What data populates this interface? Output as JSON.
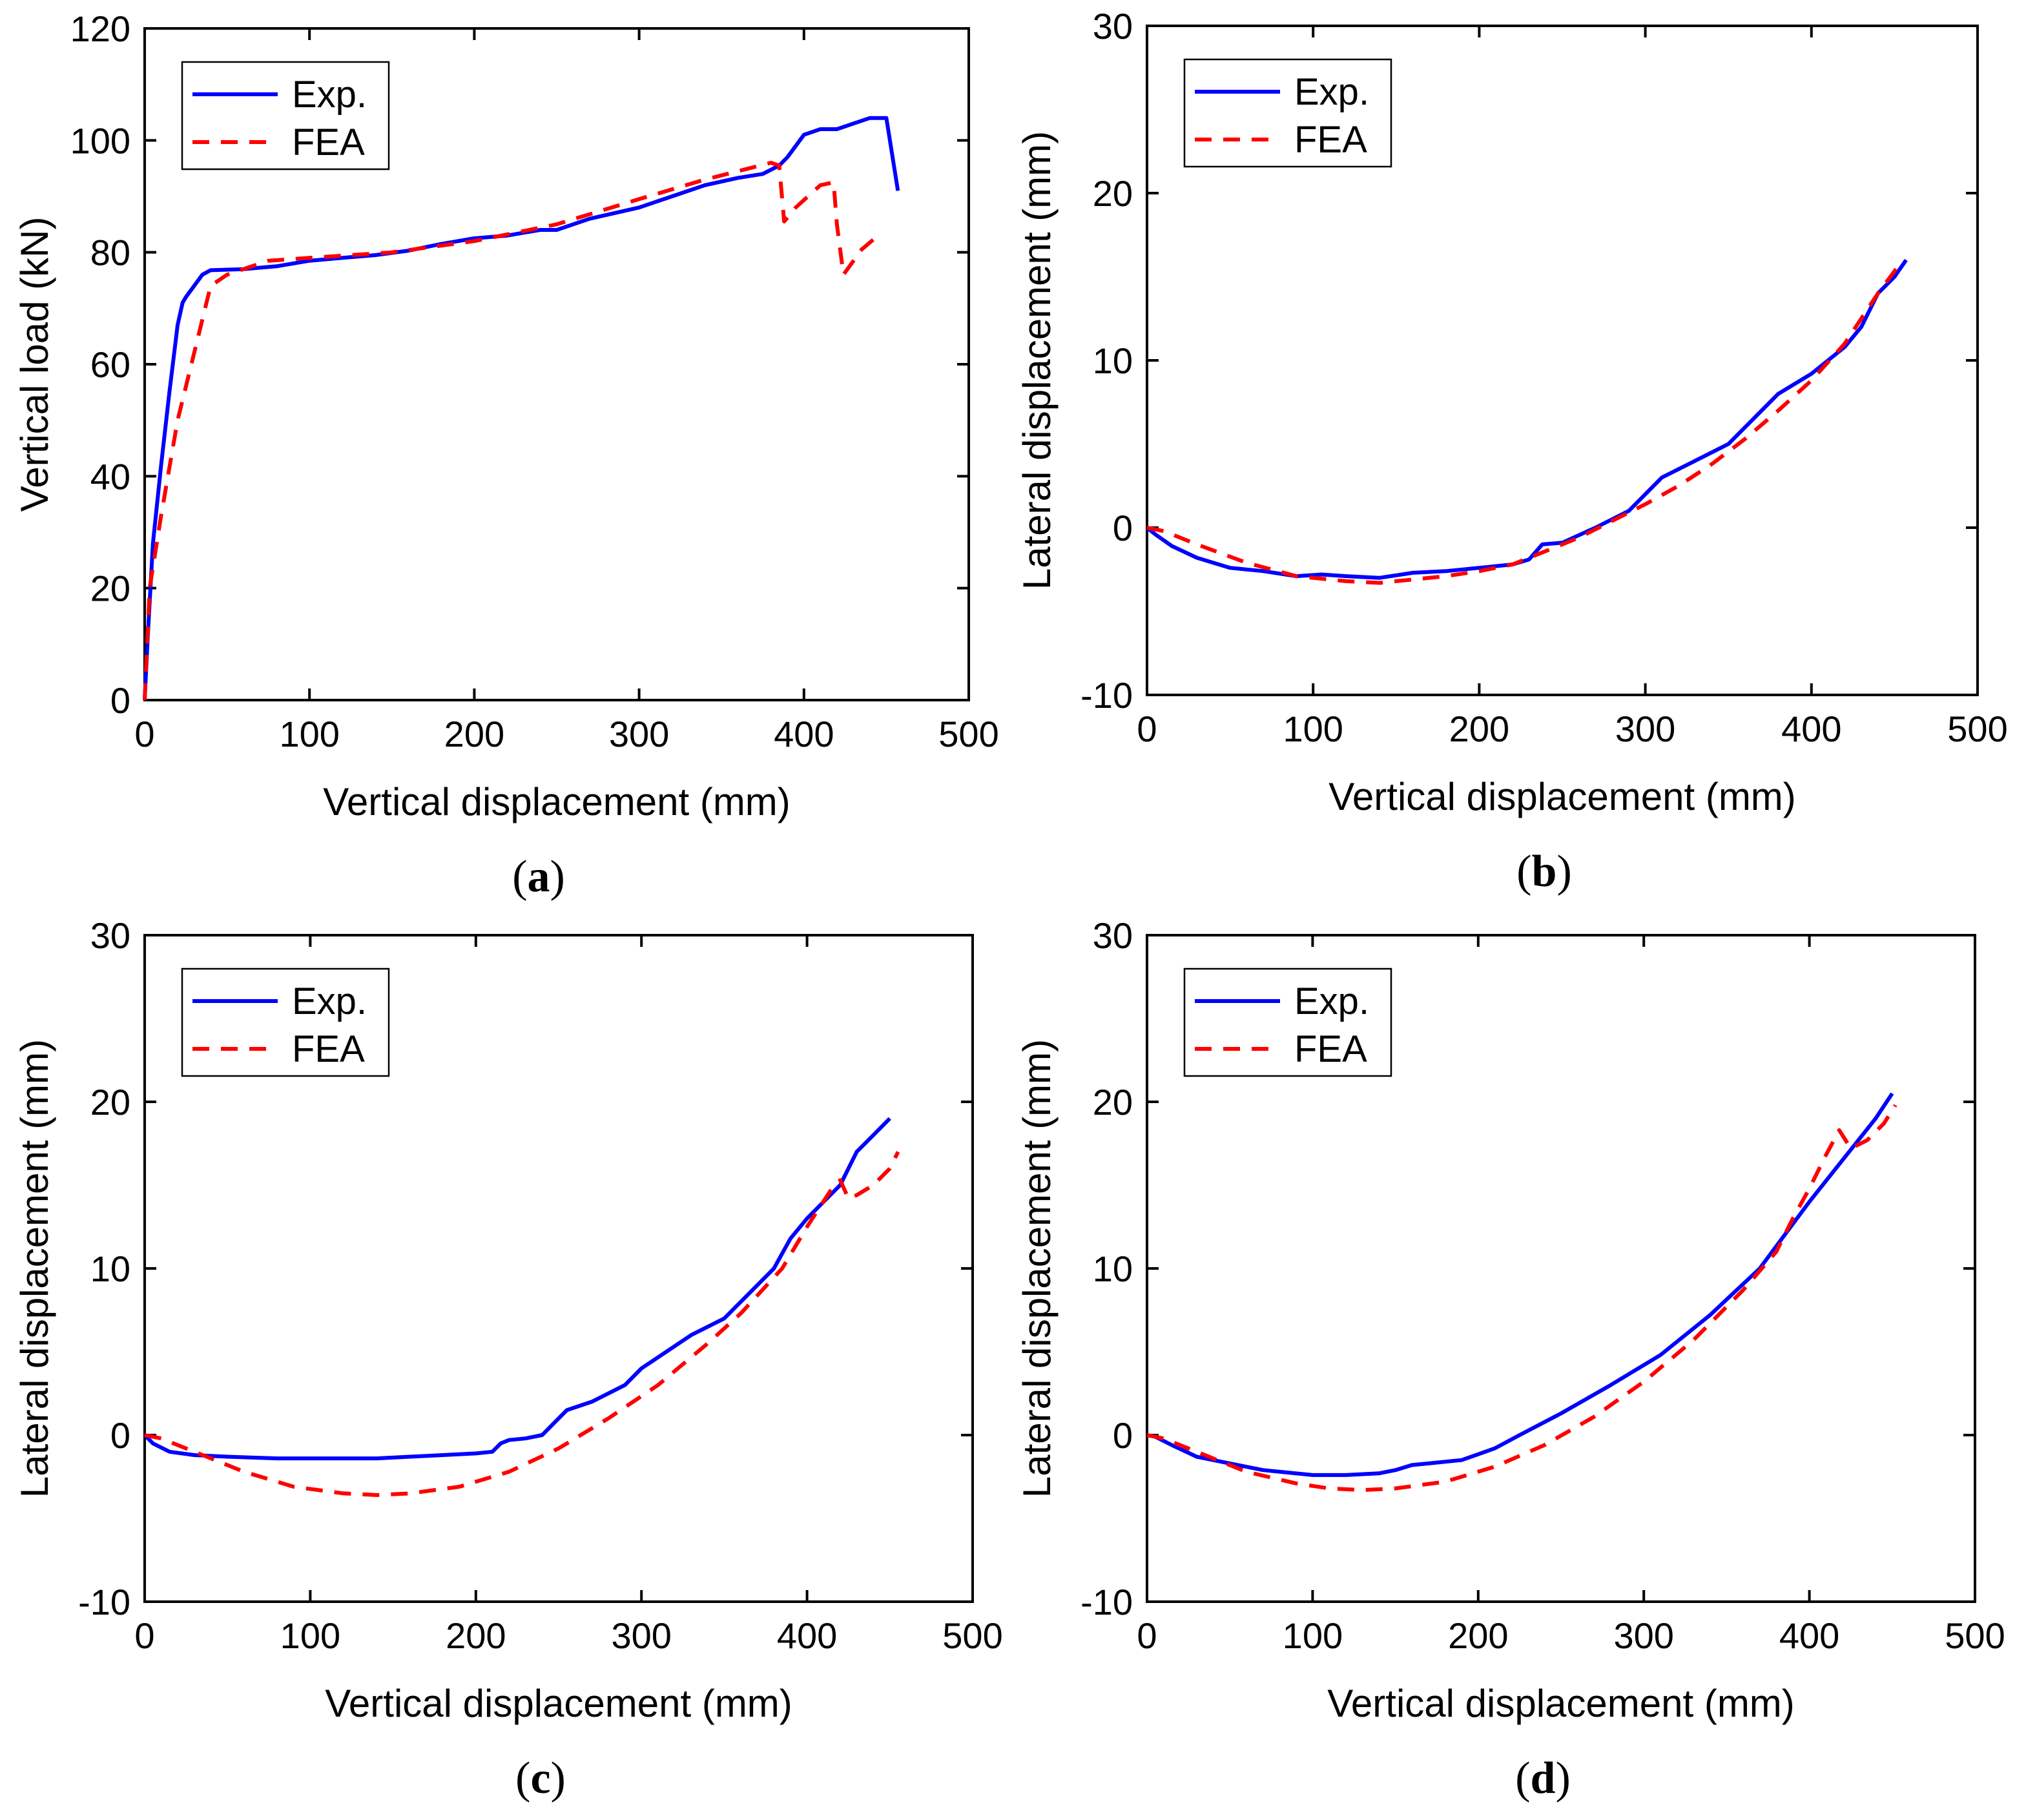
{
  "colors": {
    "exp": "#0000ff",
    "fea": "#ff0000",
    "axis": "#000000"
  },
  "chart_data": [
    {
      "id": "a",
      "type": "line",
      "caption": "a",
      "xlabel": "Vertical displacement (mm)",
      "ylabel": "Vertical load (kN)",
      "xlim": [
        0,
        500
      ],
      "ylim": [
        0,
        120
      ],
      "xticks": [
        0,
        100,
        200,
        300,
        400,
        500
      ],
      "yticks": [
        0,
        20,
        40,
        60,
        80,
        100,
        120
      ],
      "xtick_labels": [
        "0",
        "100",
        "200",
        "300",
        "400",
        "500"
      ],
      "ytick_labels": [
        "0",
        "20",
        "40",
        "60",
        "80",
        "100",
        "120"
      ],
      "legend": {
        "placement": "top-left",
        "entries": [
          "Exp.",
          "FEA"
        ]
      },
      "series": [
        {
          "name": "Exp.",
          "style": "solid",
          "color": "#0000ff",
          "x": [
            0,
            2,
            5,
            10,
            15,
            20,
            23,
            25,
            30,
            35,
            40,
            60,
            80,
            100,
            120,
            140,
            160,
            180,
            200,
            220,
            230,
            240,
            250,
            270,
            300,
            320,
            340,
            360,
            375,
            385,
            390,
            400,
            410,
            420,
            430,
            440,
            450,
            457
          ],
          "y": [
            0,
            12,
            28,
            42,
            55,
            67,
            71,
            72,
            74,
            76,
            76.8,
            77,
            77.5,
            78.5,
            79,
            79.5,
            80.3,
            81.5,
            82.5,
            83,
            83.5,
            84,
            84,
            86,
            88,
            90,
            92,
            93.3,
            94,
            95.5,
            97,
            101,
            102,
            102,
            103,
            104,
            104,
            91
          ]
        },
        {
          "name": "FEA",
          "style": "dashed",
          "color": "#ff0000",
          "x": [
            0,
            3,
            10,
            20,
            30,
            40,
            50,
            75,
            100,
            150,
            200,
            250,
            300,
            340,
            380,
            385,
            388,
            395,
            410,
            418,
            420,
            424,
            435,
            445
          ],
          "y": [
            0,
            20,
            33,
            50,
            62,
            74,
            76,
            78.5,
            79,
            80,
            82,
            85,
            89.5,
            93,
            96,
            95.5,
            85.5,
            88,
            92,
            92.5,
            85,
            76,
            80.5,
            83
          ]
        }
      ]
    },
    {
      "id": "b",
      "type": "line",
      "caption": "b",
      "xlabel": "Vertical displacement (mm)",
      "ylabel": "Lateral displacement (mm)",
      "xlim": [
        0,
        500
      ],
      "ylim": [
        -10,
        30
      ],
      "xticks": [
        0,
        100,
        200,
        300,
        400,
        500
      ],
      "yticks": [
        -10,
        0,
        10,
        20,
        30
      ],
      "xtick_labels": [
        "0",
        "100",
        "200",
        "300",
        "400",
        "500"
      ],
      "ytick_labels": [
        "-10",
        "0",
        "10",
        "20",
        "30"
      ],
      "legend": {
        "placement": "top-left",
        "entries": [
          "Exp.",
          "FEA"
        ]
      },
      "series": [
        {
          "name": "Exp.",
          "style": "solid",
          "color": "#0000ff",
          "x": [
            0,
            5,
            15,
            30,
            50,
            70,
            90,
            105,
            120,
            140,
            160,
            180,
            200,
            220,
            230,
            238,
            250,
            270,
            290,
            300,
            310,
            330,
            350,
            360,
            380,
            400,
            420,
            430,
            440,
            450,
            457
          ],
          "y": [
            0,
            -0.4,
            -1.1,
            -1.8,
            -2.4,
            -2.6,
            -2.9,
            -2.8,
            -2.9,
            -3,
            -2.7,
            -2.6,
            -2.4,
            -2.2,
            -1.9,
            -1,
            -0.9,
            0,
            1,
            2,
            3,
            4,
            5,
            6,
            8,
            9.2,
            10.8,
            12,
            14,
            15,
            16
          ]
        },
        {
          "name": "FEA",
          "style": "dashed",
          "color": "#ff0000",
          "x": [
            0,
            10,
            30,
            60,
            90,
            120,
            140,
            160,
            180,
            200,
            220,
            240,
            260,
            280,
            300,
            320,
            340,
            360,
            380,
            400,
            420,
            440,
            455
          ],
          "y": [
            0,
            -0.2,
            -1,
            -2.1,
            -2.9,
            -3.2,
            -3.3,
            -3.1,
            -2.9,
            -2.6,
            -2.2,
            -1.4,
            -0.6,
            0.4,
            1.4,
            2.5,
            3.8,
            5.3,
            7,
            8.8,
            11,
            14,
            16
          ]
        }
      ]
    },
    {
      "id": "c",
      "type": "line",
      "caption": "c",
      "xlabel": "Vertical displacement (mm)",
      "ylabel": "Lateral displacement (mm)",
      "xlim": [
        0,
        500
      ],
      "ylim": [
        -10,
        30
      ],
      "xticks": [
        0,
        100,
        200,
        300,
        400,
        500
      ],
      "yticks": [
        -10,
        0,
        10,
        20,
        30
      ],
      "xtick_labels": [
        "0",
        "100",
        "200",
        "300",
        "400",
        "500"
      ],
      "ytick_labels": [
        "-10",
        "0",
        "10",
        "20",
        "30"
      ],
      "legend": {
        "placement": "top-left",
        "entries": [
          "Exp.",
          "FEA"
        ]
      },
      "series": [
        {
          "name": "Exp.",
          "style": "solid",
          "color": "#0000ff",
          "x": [
            0,
            5,
            15,
            30,
            50,
            80,
            100,
            120,
            140,
            160,
            180,
            200,
            210,
            215,
            220,
            230,
            240,
            255,
            270,
            290,
            300,
            315,
            330,
            350,
            365,
            380,
            390,
            400,
            410,
            420,
            430,
            440,
            450
          ],
          "y": [
            0,
            -0.5,
            -1,
            -1.2,
            -1.3,
            -1.4,
            -1.4,
            -1.4,
            -1.4,
            -1.3,
            -1.2,
            -1.1,
            -1,
            -0.5,
            -0.3,
            -0.2,
            0,
            1.5,
            2,
            3,
            4,
            5,
            6,
            7,
            8.5,
            10,
            11.8,
            13,
            14,
            15,
            17,
            18,
            19
          ]
        },
        {
          "name": "FEA",
          "style": "dashed",
          "color": "#ff0000",
          "x": [
            0,
            10,
            30,
            60,
            90,
            120,
            140,
            160,
            190,
            220,
            250,
            280,
            310,
            340,
            360,
            385,
            400,
            415,
            420,
            425,
            430,
            440,
            450,
            455
          ],
          "y": [
            0,
            -0.2,
            -1,
            -2.2,
            -3.1,
            -3.5,
            -3.6,
            -3.5,
            -3.1,
            -2.2,
            -0.8,
            1,
            3,
            5.5,
            7.3,
            10,
            12.5,
            14.8,
            15.3,
            14.2,
            14.4,
            15,
            16,
            17
          ]
        }
      ]
    },
    {
      "id": "d",
      "type": "line",
      "caption": "d",
      "xlabel": "Vertical displacement (mm)",
      "ylabel": "Lateral displacement (mm)",
      "xlim": [
        0,
        500
      ],
      "ylim": [
        -10,
        30
      ],
      "xticks": [
        0,
        100,
        200,
        300,
        400,
        500
      ],
      "yticks": [
        -10,
        0,
        10,
        20,
        30
      ],
      "xtick_labels": [
        "0",
        "100",
        "200",
        "300",
        "400",
        "500"
      ],
      "ytick_labels": [
        "-10",
        "0",
        "10",
        "20",
        "30"
      ],
      "legend": {
        "placement": "top-left",
        "entries": [
          "Exp.",
          "FEA"
        ]
      },
      "series": [
        {
          "name": "Exp.",
          "style": "solid",
          "color": "#0000ff",
          "x": [
            0,
            5,
            15,
            30,
            50,
            70,
            100,
            120,
            140,
            150,
            160,
            170,
            190,
            210,
            225,
            250,
            280,
            310,
            340,
            370,
            385,
            400,
            420,
            440,
            450
          ],
          "y": [
            0,
            -0.1,
            -0.6,
            -1.3,
            -1.7,
            -2.1,
            -2.4,
            -2.4,
            -2.3,
            -2.1,
            -1.8,
            -1.7,
            -1.5,
            -0.8,
            0,
            1.3,
            3,
            4.8,
            7.2,
            10,
            12,
            14,
            16.5,
            19,
            20.5
          ]
        },
        {
          "name": "FEA",
          "style": "dashed",
          "color": "#ff0000",
          "x": [
            0,
            10,
            30,
            60,
            90,
            110,
            130,
            150,
            180,
            210,
            240,
            270,
            300,
            330,
            360,
            380,
            390,
            400,
            410,
            418,
            425,
            435,
            445,
            452
          ],
          "y": [
            0,
            -0.2,
            -1,
            -2.2,
            -2.9,
            -3.2,
            -3.3,
            -3.2,
            -2.8,
            -1.9,
            -0.6,
            1.1,
            3.2,
            5.7,
            8.7,
            11,
            13,
            14.8,
            16.8,
            18.3,
            17.2,
            17.7,
            18.7,
            19.8
          ]
        }
      ]
    }
  ]
}
